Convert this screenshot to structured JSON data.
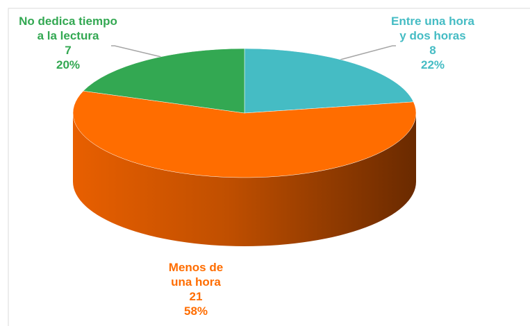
{
  "chart_data": {
    "type": "pie3d",
    "categories": [
      "Entre una hora y dos horas",
      "Menos de una hora",
      "No dedica tiempo a la lectura"
    ],
    "values": [
      8,
      21,
      7
    ],
    "percentages": [
      22,
      58,
      20
    ],
    "percentage_labels": [
      "22%",
      "58%",
      "20%"
    ],
    "colors": [
      "#45bcc4",
      "#ff6d00",
      "#33a852"
    ]
  }
}
